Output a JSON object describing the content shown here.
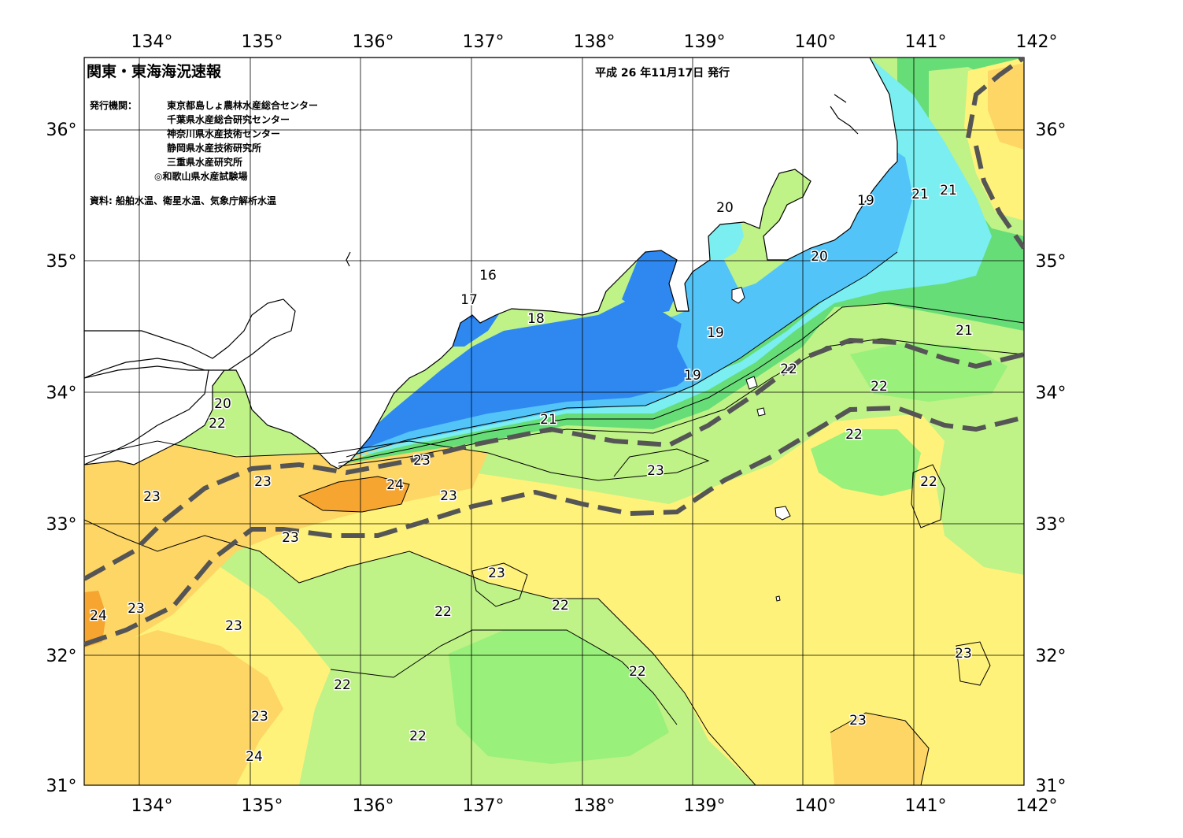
{
  "header": {
    "title": "関東・東海海況速報",
    "issue_date": "平成 26 年11月17日 発行",
    "issuer_label": "発行機関：",
    "issuers": [
      "東京都島しょ農林水産総合センター",
      "千葉県水産総合研究センター",
      "神奈川県水産技術センター",
      "静岡県水産技術研究所",
      "三重県水産研究所",
      "◎和歌山県水産試験場"
    ],
    "source": "資料: 船舶水温、衛星水温、気象庁解析水温"
  },
  "axes": {
    "longitude_labels": [
      "134°",
      "135°",
      "136°",
      "137°",
      "138°",
      "139°",
      "140°",
      "141°",
      "142°"
    ],
    "latitude_labels": [
      "36°",
      "35°",
      "34°",
      "33°",
      "32°",
      "31°"
    ]
  },
  "isotherm_labels": [
    "16",
    "17",
    "18",
    "19",
    "19",
    "19",
    "20",
    "20",
    "20",
    "21",
    "21",
    "21",
    "21",
    "22",
    "22",
    "22",
    "22",
    "22",
    "22",
    "22",
    "22",
    "22",
    "22",
    "23",
    "23",
    "23",
    "23",
    "23",
    "23",
    "23",
    "23",
    "23",
    "23",
    "23",
    "24",
    "24"
  ],
  "colors": {
    "land": "#ffffff",
    "t16": "#5544cc",
    "t17": "#1a66ee",
    "t18": "#2e88f0",
    "t19": "#52c4f8",
    "t20": "#7aeef0",
    "t21": "#66dd77",
    "t22_dark": "#99f07a",
    "t22": "#bff287",
    "t23": "#fff27a",
    "t23_5": "#fdd666",
    "t24": "#f6a530",
    "kuroshio_axis": "#555555"
  }
}
